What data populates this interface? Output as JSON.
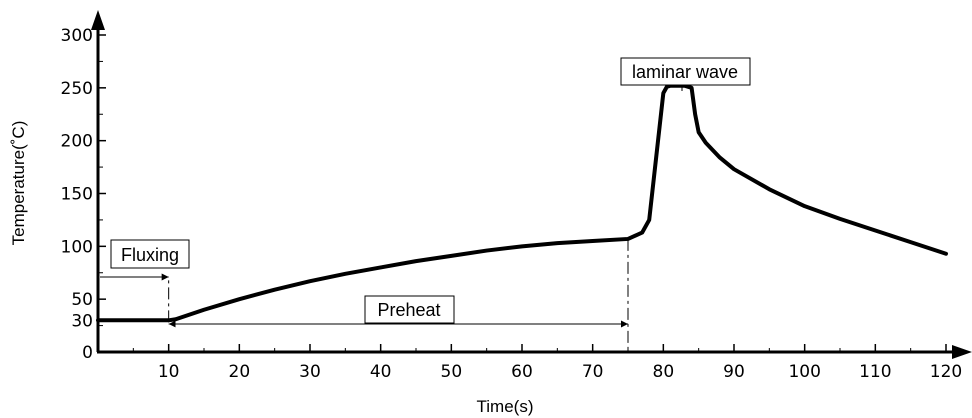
{
  "chart_data": {
    "type": "line",
    "xlabel": "Time(s)",
    "ylabel": "Temperature(˚C)",
    "xlim": [
      0,
      120
    ],
    "ylim": [
      0,
      300
    ],
    "x_ticks": [
      10,
      20,
      30,
      40,
      50,
      60,
      70,
      80,
      90,
      100,
      110,
      120
    ],
    "y_ticks": [
      0,
      30,
      50,
      100,
      150,
      200,
      250,
      300
    ],
    "grid": false,
    "series": [
      {
        "x": [
          0,
          10,
          11,
          15,
          20,
          25,
          30,
          35,
          40,
          45,
          50,
          55,
          60,
          65,
          70,
          75,
          77,
          78,
          79,
          80,
          80.5,
          81,
          82,
          83,
          84,
          84.5,
          85,
          86,
          88,
          90,
          95,
          100,
          105,
          110,
          115,
          120
        ],
        "y": [
          30,
          30,
          31,
          40,
          50,
          59,
          67,
          74,
          80,
          86,
          91,
          96,
          100,
          103,
          105,
          107,
          113,
          125,
          185,
          245,
          251,
          252,
          252,
          252,
          250,
          225,
          208,
          198,
          184,
          173,
          154,
          138,
          126,
          115,
          104,
          93
        ]
      }
    ],
    "stages": [
      {
        "label": "Fluxing",
        "start": 0,
        "end": 10
      },
      {
        "label": "Preheat",
        "start": 10,
        "end": 75
      },
      {
        "label": "laminar wave",
        "start": 80,
        "end": 84
      }
    ]
  }
}
